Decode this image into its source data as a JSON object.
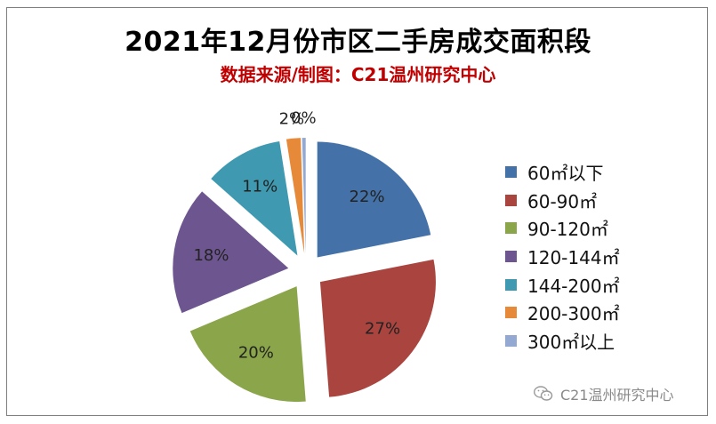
{
  "chart_data": {
    "type": "pie",
    "title": "2021年12月份市区二手房成交面积段",
    "subtitle": "数据来源/制图：C21温州研究中心",
    "slices": [
      {
        "label": "60㎡以下",
        "value": 22,
        "pct_label": "22%",
        "color": "#4472a8"
      },
      {
        "label": "60-90㎡",
        "value": 27,
        "pct_label": "27%",
        "color": "#a9443f"
      },
      {
        "label": "90-120㎡",
        "value": 20,
        "pct_label": "20%",
        "color": "#8aa54a"
      },
      {
        "label": "120-144㎡",
        "value": 18,
        "pct_label": "18%",
        "color": "#6d568f"
      },
      {
        "label": "144-200㎡",
        "value": 11,
        "pct_label": "11%",
        "color": "#3f99b0"
      },
      {
        "label": "200-300㎡",
        "value": 2,
        "pct_label": "2%",
        "color": "#e68a3a"
      },
      {
        "label": "300㎡以上",
        "value": 0.5,
        "pct_label": "0%",
        "color": "#93a9d1"
      }
    ],
    "legend_position": "right"
  },
  "watermark": {
    "text": "C21温州研究中心",
    "icon": "wechat-icon"
  }
}
